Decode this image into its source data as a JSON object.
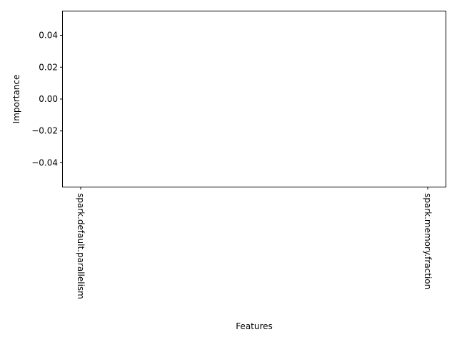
{
  "chart_data": {
    "type": "bar",
    "title": "",
    "xlabel": "Features",
    "ylabel": "Importance",
    "categories": [
      "spark.default.parallelism",
      "spark.memory.fraction"
    ],
    "values": [
      0,
      0
    ],
    "ylim": [
      -0.055,
      0.055
    ],
    "yticks": [
      0.04,
      0.02,
      0.0,
      -0.02,
      -0.04
    ],
    "ytick_labels": [
      "0.04",
      "0.02",
      "0.00",
      "−0.02",
      "−0.04"
    ],
    "grid": false,
    "legend": "none",
    "colors": {
      "axis": "#000000",
      "background": "#ffffff",
      "bar": "#1f77b4"
    }
  }
}
